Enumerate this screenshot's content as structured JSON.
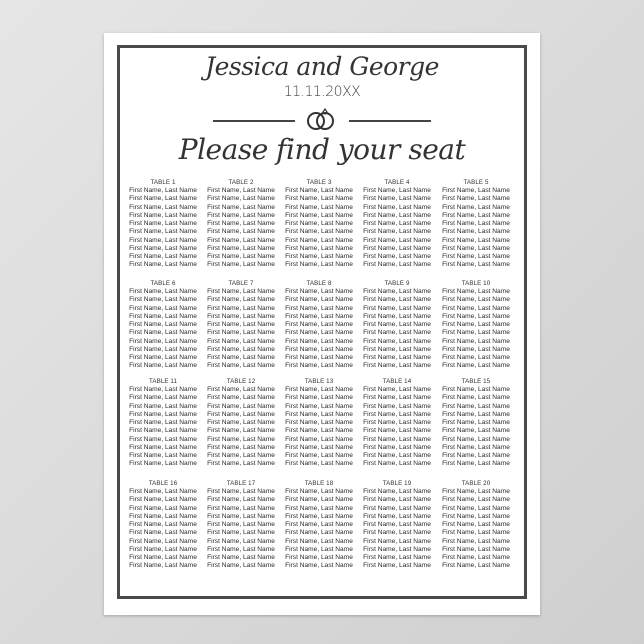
{
  "header": {
    "couple": "Jessica and George",
    "date": "11.11.20XX",
    "icon": "wedding-rings-icon",
    "subtitle": "Please find your seat"
  },
  "colors": {
    "frame": "#4a4a4a",
    "text": "#333333",
    "background": "#d9d9d9"
  },
  "tables": [
    {
      "label": "TABLE 1",
      "guests": [
        "First Name, Last Name",
        "First Name, Last Name",
        "First Name, Last Name",
        "First Name, Last Name",
        "First Name, Last Name",
        "First Name, Last Name",
        "First Name, Last Name",
        "First Name, Last Name",
        "First Name, Last Name",
        "First Name, Last Name"
      ]
    },
    {
      "label": "TABLE 2",
      "guests": [
        "First Name, Last Name",
        "First Name, Last Name",
        "First Name, Last Name",
        "First Name, Last Name",
        "First Name, Last Name",
        "First Name, Last Name",
        "First Name, Last Name",
        "First Name, Last Name",
        "First Name, Last Name",
        "First Name, Last Name"
      ]
    },
    {
      "label": "TABLE 3",
      "guests": [
        "First Name, Last Name",
        "First Name, Last Name",
        "First Name, Last Name",
        "First Name, Last Name",
        "First Name, Last Name",
        "First Name, Last Name",
        "First Name, Last Name",
        "First Name, Last Name",
        "First Name, Last Name",
        "First Name, Last Name"
      ]
    },
    {
      "label": "TABLE 4",
      "guests": [
        "First Name, Last Name",
        "First Name, Last Name",
        "First Name, Last Name",
        "First Name, Last Name",
        "First Name, Last Name",
        "First Name, Last Name",
        "First Name, Last Name",
        "First Name, Last Name",
        "First Name, Last Name",
        "First Name, Last Name"
      ]
    },
    {
      "label": "TABLE 5",
      "guests": [
        "First Name, Last Name",
        "First Name, Last Name",
        "First Name, Last Name",
        "First Name, Last Name",
        "First Name, Last Name",
        "First Name, Last Name",
        "First Name, Last Name",
        "First Name, Last Name",
        "First Name, Last Name",
        "First Name, Last Name"
      ]
    },
    {
      "label": "TABLE 6",
      "guests": [
        "First Name, Last Name",
        "First Name, Last Name",
        "First Name, Last Name",
        "First Name, Last Name",
        "First Name, Last Name",
        "First Name, Last Name",
        "First Name, Last Name",
        "First Name, Last Name",
        "First Name, Last Name",
        "First Name, Last Name"
      ]
    },
    {
      "label": "TABLE 7",
      "guests": [
        "First Name, Last Name",
        "First Name, Last Name",
        "First Name, Last Name",
        "First Name, Last Name",
        "First Name, Last Name",
        "First Name, Last Name",
        "First Name, Last Name",
        "First Name, Last Name",
        "First Name, Last Name",
        "First Name, Last Name"
      ]
    },
    {
      "label": "TABLE 8",
      "guests": [
        "First Name, Last Name",
        "First Name, Last Name",
        "First Name, Last Name",
        "First Name, Last Name",
        "First Name, Last Name",
        "First Name, Last Name",
        "First Name, Last Name",
        "First Name, Last Name",
        "First Name, Last Name",
        "First Name, Last Name"
      ]
    },
    {
      "label": "TABLE 9",
      "guests": [
        "First Name, Last Name",
        "First Name, Last Name",
        "First Name, Last Name",
        "First Name, Last Name",
        "First Name, Last Name",
        "First Name, Last Name",
        "First Name, Last Name",
        "First Name, Last Name",
        "First Name, Last Name",
        "First Name, Last Name"
      ]
    },
    {
      "label": "TABLE 10",
      "guests": [
        "First Name, Last Name",
        "First Name, Last Name",
        "First Name, Last Name",
        "First Name, Last Name",
        "First Name, Last Name",
        "First Name, Last Name",
        "First Name, Last Name",
        "First Name, Last Name",
        "First Name, Last Name",
        "First Name, Last Name"
      ]
    },
    {
      "label": "TABLE 11",
      "guests": [
        "First Name, Last Name",
        "First Name, Last Name",
        "First Name, Last Name",
        "First Name, Last Name",
        "First Name, Last Name",
        "First Name, Last Name",
        "First Name, Last Name",
        "First Name, Last Name",
        "First Name, Last Name",
        "First Name, Last Name"
      ]
    },
    {
      "label": "TABLE 12",
      "guests": [
        "First Name, Last Name",
        "First Name, Last Name",
        "First Name, Last Name",
        "First Name, Last Name",
        "First Name, Last Name",
        "First Name, Last Name",
        "First Name, Last Name",
        "First Name, Last Name",
        "First Name, Last Name",
        "First Name, Last Name"
      ]
    },
    {
      "label": "TABLE 13",
      "guests": [
        "First Name, Last Name",
        "First Name, Last Name",
        "First Name, Last Name",
        "First Name, Last Name",
        "First Name, Last Name",
        "First Name, Last Name",
        "First Name, Last Name",
        "First Name, Last Name",
        "First Name, Last Name",
        "First Name, Last Name"
      ]
    },
    {
      "label": "TABLE 14",
      "guests": [
        "First Name, Last Name",
        "First Name, Last Name",
        "First Name, Last Name",
        "First Name, Last Name",
        "First Name, Last Name",
        "First Name, Last Name",
        "First Name, Last Name",
        "First Name, Last Name",
        "First Name, Last Name",
        "First Name, Last Name"
      ]
    },
    {
      "label": "TABLE 15",
      "guests": [
        "First Name, Last Name",
        "First Name, Last Name",
        "First Name, Last Name",
        "First Name, Last Name",
        "First Name, Last Name",
        "First Name, Last Name",
        "First Name, Last Name",
        "First Name, Last Name",
        "First Name, Last Name",
        "First Name, Last Name"
      ]
    },
    {
      "label": "TABLE 16",
      "guests": [
        "First Name, Last Name",
        "First Name, Last Name",
        "First Name, Last Name",
        "First Name, Last Name",
        "First Name, Last Name",
        "First Name, Last Name",
        "First Name, Last Name",
        "First Name, Last Name",
        "First Name, Last Name",
        "First Name, Last Name"
      ]
    },
    {
      "label": "TABLE 17",
      "guests": [
        "First Name, Last Name",
        "First Name, Last Name",
        "First Name, Last Name",
        "First Name, Last Name",
        "First Name, Last Name",
        "First Name, Last Name",
        "First Name, Last Name",
        "First Name, Last Name",
        "First Name, Last Name",
        "First Name, Last Name"
      ]
    },
    {
      "label": "TABLE 18",
      "guests": [
        "First Name, Last Name",
        "First Name, Last Name",
        "First Name, Last Name",
        "First Name, Last Name",
        "First Name, Last Name",
        "First Name, Last Name",
        "First Name, Last Name",
        "First Name, Last Name",
        "First Name, Last Name",
        "First Name, Last Name"
      ]
    },
    {
      "label": "TABLE 19",
      "guests": [
        "First Name, Last Name",
        "First Name, Last Name",
        "First Name, Last Name",
        "First Name, Last Name",
        "First Name, Last Name",
        "First Name, Last Name",
        "First Name, Last Name",
        "First Name, Last Name",
        "First Name, Last Name",
        "First Name, Last Name"
      ]
    },
    {
      "label": "TABLE 20",
      "guests": [
        "First Name, Last Name",
        "First Name, Last Name",
        "First Name, Last Name",
        "First Name, Last Name",
        "First Name, Last Name",
        "First Name, Last Name",
        "First Name, Last Name",
        "First Name, Last Name",
        "First Name, Last Name",
        "First Name, Last Name"
      ]
    }
  ]
}
